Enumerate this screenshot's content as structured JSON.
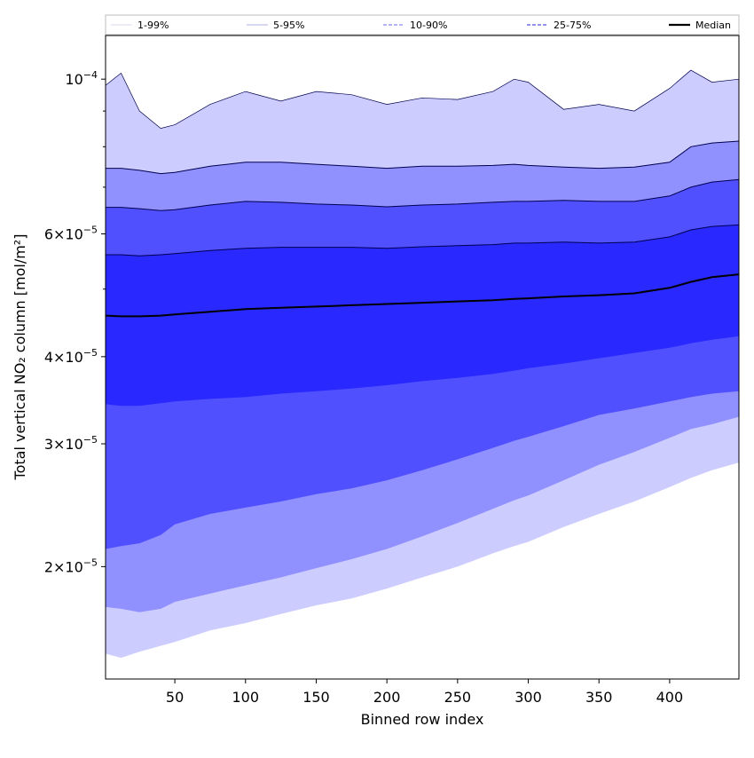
{
  "chart_data": {
    "type": "area",
    "xlabel": "Binned row index",
    "ylabel": "Total vertical NO₂ column [mol/m²]",
    "xlim": [
      1,
      449
    ],
    "ylim": [
      1.38e-05,
      0.0001155
    ],
    "y_scale": "log",
    "x_ticks": [
      50,
      100,
      150,
      200,
      250,
      300,
      350,
      400
    ],
    "y_ticks": [
      {
        "value": 0.0001,
        "mantissa": "",
        "exponent": "−4"
      },
      {
        "value": 6e-05,
        "mantissa": "6",
        "exponent": "−5"
      },
      {
        "value": 4e-05,
        "mantissa": "4",
        "exponent": "−5"
      },
      {
        "value": 3e-05,
        "mantissa": "3",
        "exponent": "−5"
      },
      {
        "value": 2e-05,
        "mantissa": "2",
        "exponent": "−5"
      }
    ],
    "y_minor_ticks": [
      9e-05,
      8e-05,
      7e-05,
      5e-05
    ],
    "x": [
      1,
      12,
      25,
      40,
      50,
      75,
      100,
      125,
      150,
      175,
      200,
      225,
      250,
      275,
      290,
      300,
      325,
      350,
      375,
      400,
      415,
      430,
      449
    ],
    "legend_position": "top",
    "legend": [
      {
        "label": "1-99%",
        "color": "#e0e0f0",
        "dash": "solid"
      },
      {
        "label": "5-95%",
        "color": "#c0c0e8",
        "dash": "solid"
      },
      {
        "label": "10-90%",
        "color": "#8a8aee",
        "dash": "dashed"
      },
      {
        "label": "25-75%",
        "color": "#5555dd",
        "dash": "dashed"
      },
      {
        "label": "Median",
        "color": "#000000",
        "dash": "solid"
      }
    ],
    "bands": [
      {
        "name": "1-99%",
        "fill": "#ccccff",
        "lower": [
          1.5e-05,
          1.48e-05,
          1.51e-05,
          1.54e-05,
          1.56e-05,
          1.62e-05,
          1.66e-05,
          1.71e-05,
          1.76e-05,
          1.8e-05,
          1.86e-05,
          1.93e-05,
          2e-05,
          2.09e-05,
          2.14e-05,
          2.17e-05,
          2.28e-05,
          2.38e-05,
          2.48e-05,
          2.6e-05,
          2.68e-05,
          2.75e-05,
          2.82e-05
        ],
        "upper": [
          9.8e-05,
          0.000102,
          9e-05,
          8.5e-05,
          8.6e-05,
          9.2e-05,
          9.6e-05,
          9.3e-05,
          9.6e-05,
          9.5e-05,
          9.2e-05,
          9.4e-05,
          9.35e-05,
          9.6e-05,
          0.0001,
          9.9e-05,
          9.05e-05,
          9.2e-05,
          9e-05,
          9.7e-05,
          0.000103,
          9.9e-05,
          0.0001
        ]
      },
      {
        "name": "5-95%",
        "fill": "#9090ff",
        "lower": [
          1.75e-05,
          1.74e-05,
          1.72e-05,
          1.74e-05,
          1.78e-05,
          1.83e-05,
          1.88e-05,
          1.93e-05,
          1.99e-05,
          2.05e-05,
          2.12e-05,
          2.21e-05,
          2.31e-05,
          2.42e-05,
          2.49e-05,
          2.53e-05,
          2.66e-05,
          2.8e-05,
          2.92e-05,
          3.06e-05,
          3.15e-05,
          3.2e-05,
          3.28e-05
        ]
      },
      {
        "name": "10-90%",
        "fill": "#5050ff",
        "lower": [
          2.12e-05,
          2.14e-05,
          2.16e-05,
          2.22e-05,
          2.3e-05,
          2.38e-05,
          2.43e-05,
          2.48e-05,
          2.54e-05,
          2.59e-05,
          2.66e-05,
          2.75e-05,
          2.85e-05,
          2.96e-05,
          3.03e-05,
          3.07e-05,
          3.18e-05,
          3.3e-05,
          3.37e-05,
          3.45e-05,
          3.5e-05,
          3.54e-05,
          3.57e-05
        ],
        "upper": [
          7.45e-05,
          7.45e-05,
          7.4e-05,
          7.32e-05,
          7.35e-05,
          7.5e-05,
          7.6e-05,
          7.6e-05,
          7.55e-05,
          7.5e-05,
          7.45e-05,
          7.5e-05,
          7.5e-05,
          7.52e-05,
          7.55e-05,
          7.52e-05,
          7.48e-05,
          7.45e-05,
          7.48e-05,
          7.6e-05,
          8e-05,
          8.1e-05,
          8.15e-05
        ]
      },
      {
        "name": "25-75%",
        "fill": "#2828ff",
        "lower": [
          3.42e-05,
          3.4e-05,
          3.4e-05,
          3.43e-05,
          3.45e-05,
          3.48e-05,
          3.5e-05,
          3.54e-05,
          3.57e-05,
          3.6e-05,
          3.64e-05,
          3.69e-05,
          3.73e-05,
          3.78e-05,
          3.82e-05,
          3.85e-05,
          3.91e-05,
          3.98e-05,
          4.05e-05,
          4.12e-05,
          4.18e-05,
          4.23e-05,
          4.28e-05
        ],
        "upper": [
          6.55e-05,
          6.55e-05,
          6.52e-05,
          6.48e-05,
          6.5e-05,
          6.6e-05,
          6.68e-05,
          6.66e-05,
          6.62e-05,
          6.6e-05,
          6.56e-05,
          6.6e-05,
          6.62e-05,
          6.66e-05,
          6.68e-05,
          6.68e-05,
          6.7e-05,
          6.68e-05,
          6.68e-05,
          6.8e-05,
          7e-05,
          7.12e-05,
          7.18e-05
        ]
      }
    ],
    "inner_upper": [
      5.6e-05,
      5.6e-05,
      5.58e-05,
      5.6e-05,
      5.62e-05,
      5.68e-05,
      5.72e-05,
      5.74e-05,
      5.74e-05,
      5.74e-05,
      5.72e-05,
      5.75e-05,
      5.77e-05,
      5.79e-05,
      5.82e-05,
      5.82e-05,
      5.84e-05,
      5.82e-05,
      5.84e-05,
      5.94e-05,
      6.08e-05,
      6.15e-05,
      6.18e-05
    ],
    "median": [
      4.58e-05,
      4.57e-05,
      4.57e-05,
      4.58e-05,
      4.6e-05,
      4.64e-05,
      4.68e-05,
      4.7e-05,
      4.72e-05,
      4.74e-05,
      4.76e-05,
      4.78e-05,
      4.8e-05,
      4.82e-05,
      4.84e-05,
      4.85e-05,
      4.88e-05,
      4.9e-05,
      4.93e-05,
      5.02e-05,
      5.12e-05,
      5.2e-05,
      5.25e-05
    ]
  }
}
